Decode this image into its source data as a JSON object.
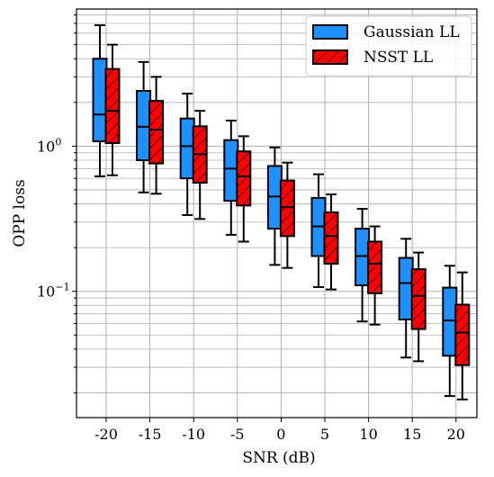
{
  "chart_data": {
    "type": "box",
    "xlabel": "SNR (dB)",
    "ylabel": "OPP loss",
    "y_scale": "log",
    "ylim": [
      0.0135,
      8.8
    ],
    "grid": true,
    "legend_position": "top-right",
    "categories": [
      "-20",
      "-15",
      "-10",
      "-5",
      "0",
      "5",
      "10",
      "15",
      "20"
    ],
    "y_ticks": [
      {
        "value": 1.0,
        "base": "10",
        "exponent": "0"
      },
      {
        "value": 0.1,
        "base": "10",
        "exponent": "−1"
      }
    ],
    "series": [
      {
        "name": "Gaussian LL",
        "color": "#1e90ff",
        "hatch": false,
        "boxes": [
          {
            "whisker_low": 0.62,
            "q1": 1.08,
            "median": 1.65,
            "q3": 4.0,
            "whisker_high": 6.8
          },
          {
            "whisker_low": 0.48,
            "q1": 0.8,
            "median": 1.36,
            "q3": 2.4,
            "whisker_high": 3.8
          },
          {
            "whisker_low": 0.335,
            "q1": 0.6,
            "median": 1.0,
            "q3": 1.55,
            "whisker_high": 2.3
          },
          {
            "whisker_low": 0.245,
            "q1": 0.42,
            "median": 0.7,
            "q3": 1.1,
            "whisker_high": 1.5
          },
          {
            "whisker_low": 0.152,
            "q1": 0.27,
            "median": 0.45,
            "q3": 0.73,
            "whisker_high": 0.98
          },
          {
            "whisker_low": 0.107,
            "q1": 0.175,
            "median": 0.28,
            "q3": 0.44,
            "whisker_high": 0.64
          },
          {
            "whisker_low": 0.062,
            "q1": 0.11,
            "median": 0.175,
            "q3": 0.27,
            "whisker_high": 0.37
          },
          {
            "whisker_low": 0.035,
            "q1": 0.064,
            "median": 0.114,
            "q3": 0.17,
            "whisker_high": 0.23
          },
          {
            "whisker_low": 0.019,
            "q1": 0.036,
            "median": 0.063,
            "q3": 0.106,
            "whisker_high": 0.15
          }
        ]
      },
      {
        "name": "NSST LL",
        "color": "#ff0000",
        "hatch": true,
        "boxes": [
          {
            "whisker_low": 0.63,
            "q1": 1.05,
            "median": 1.75,
            "q3": 3.4,
            "whisker_high": 5.0
          },
          {
            "whisker_low": 0.47,
            "q1": 0.76,
            "median": 1.3,
            "q3": 2.05,
            "whisker_high": 3.0
          },
          {
            "whisker_low": 0.315,
            "q1": 0.56,
            "median": 0.88,
            "q3": 1.37,
            "whisker_high": 1.75
          },
          {
            "whisker_low": 0.22,
            "q1": 0.39,
            "median": 0.62,
            "q3": 0.92,
            "whisker_high": 1.17
          },
          {
            "whisker_low": 0.145,
            "q1": 0.24,
            "median": 0.38,
            "q3": 0.58,
            "whisker_high": 0.77
          },
          {
            "whisker_low": 0.103,
            "q1": 0.155,
            "median": 0.24,
            "q3": 0.35,
            "whisker_high": 0.465
          },
          {
            "whisker_low": 0.059,
            "q1": 0.097,
            "median": 0.155,
            "q3": 0.22,
            "whisker_high": 0.28
          },
          {
            "whisker_low": 0.033,
            "q1": 0.055,
            "median": 0.093,
            "q3": 0.142,
            "whisker_high": 0.185
          },
          {
            "whisker_low": 0.018,
            "q1": 0.031,
            "median": 0.052,
            "q3": 0.081,
            "whisker_high": 0.135
          }
        ]
      }
    ]
  }
}
